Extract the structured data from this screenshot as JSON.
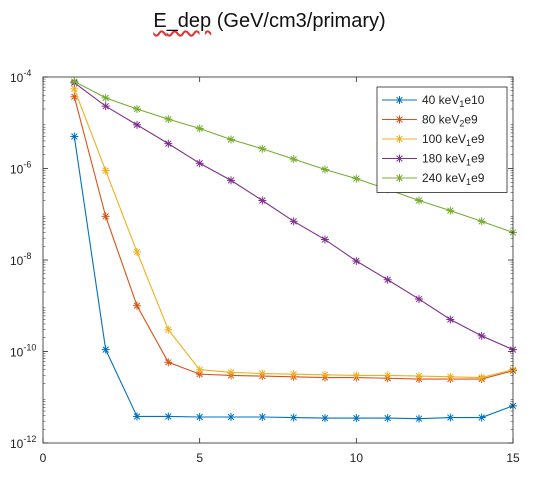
{
  "chart_data": {
    "type": "line",
    "title": "E_dep (GeV/cm3/primary)",
    "title_parts": [
      "E",
      "_dep",
      " (GeV/cm3/primary)"
    ],
    "xlabel": "",
    "ylabel": "",
    "xlim": [
      0,
      15
    ],
    "ylim": [
      1e-12,
      0.0001
    ],
    "yscale": "log",
    "grid": false,
    "legend_position": "top-right",
    "x_ticks": [
      0,
      5,
      10,
      15
    ],
    "x_tick_labels": [
      "0",
      "5",
      "10",
      "15"
    ],
    "y_ticks": [
      1e-12,
      1e-10,
      1e-08,
      1e-06,
      0.0001
    ],
    "y_tick_labels": [
      {
        "base": "10",
        "exp": "-12"
      },
      {
        "base": "10",
        "exp": "-10"
      },
      {
        "base": "10",
        "exp": "-8"
      },
      {
        "base": "10",
        "exp": "-6"
      },
      {
        "base": "10",
        "exp": "-4"
      }
    ],
    "x": [
      1,
      2,
      3,
      4,
      5,
      6,
      7,
      8,
      9,
      10,
      11,
      12,
      13,
      14,
      15
    ],
    "series": [
      {
        "name": "40 keV1e10",
        "legend_parts": [
          "40 keV",
          "1",
          "e10"
        ],
        "color": "#0072BD",
        "values": [
          5e-06,
          1.1e-10,
          3.8e-12,
          3.8e-12,
          3.7e-12,
          3.7e-12,
          3.7e-12,
          3.6e-12,
          3.5e-12,
          3.5e-12,
          3.5e-12,
          3.4e-12,
          3.6e-12,
          3.6e-12,
          6.5e-12
        ]
      },
      {
        "name": "80 keV2e9",
        "legend_parts": [
          "80 keV",
          "2",
          "e9"
        ],
        "color": "#D95319",
        "values": [
          3.7e-05,
          9e-08,
          1e-09,
          5.8e-11,
          3.2e-11,
          3e-11,
          2.9e-11,
          2.8e-11,
          2.7e-11,
          2.7e-11,
          2.6e-11,
          2.5e-11,
          2.5e-11,
          2.5e-11,
          3.8e-11
        ]
      },
      {
        "name": "100 keV1e9",
        "legend_parts": [
          "100 keV",
          "1",
          "e9"
        ],
        "color": "#EDB120",
        "values": [
          5.5e-05,
          9e-07,
          1.5e-08,
          3e-10,
          4e-11,
          3.5e-11,
          3.3e-11,
          3.2e-11,
          3.1e-11,
          3e-11,
          3e-11,
          2.9e-11,
          2.8e-11,
          2.7e-11,
          4e-11
        ]
      },
      {
        "name": "180 keV1e9",
        "legend_parts": [
          "180 keV",
          "1",
          "e9"
        ],
        "color": "#7E2F8E",
        "values": [
          7.5e-05,
          2.3e-05,
          9e-06,
          3.5e-06,
          1.3e-06,
          5.5e-07,
          2e-07,
          7e-08,
          2.8e-08,
          9.5e-09,
          3.7e-09,
          1.4e-09,
          5e-10,
          2.2e-10,
          1.1e-10
        ]
      },
      {
        "name": "240 keV1e9",
        "legend_parts": [
          "240 keV",
          "1",
          "e9"
        ],
        "color": "#77AC30",
        "values": [
          8e-05,
          3.5e-05,
          2e-05,
          1.2e-05,
          7.5e-06,
          4.3e-06,
          2.7e-06,
          1.6e-06,
          9.5e-07,
          6e-07,
          3.5e-07,
          2e-07,
          1.2e-07,
          7e-08,
          4e-08
        ]
      }
    ]
  }
}
